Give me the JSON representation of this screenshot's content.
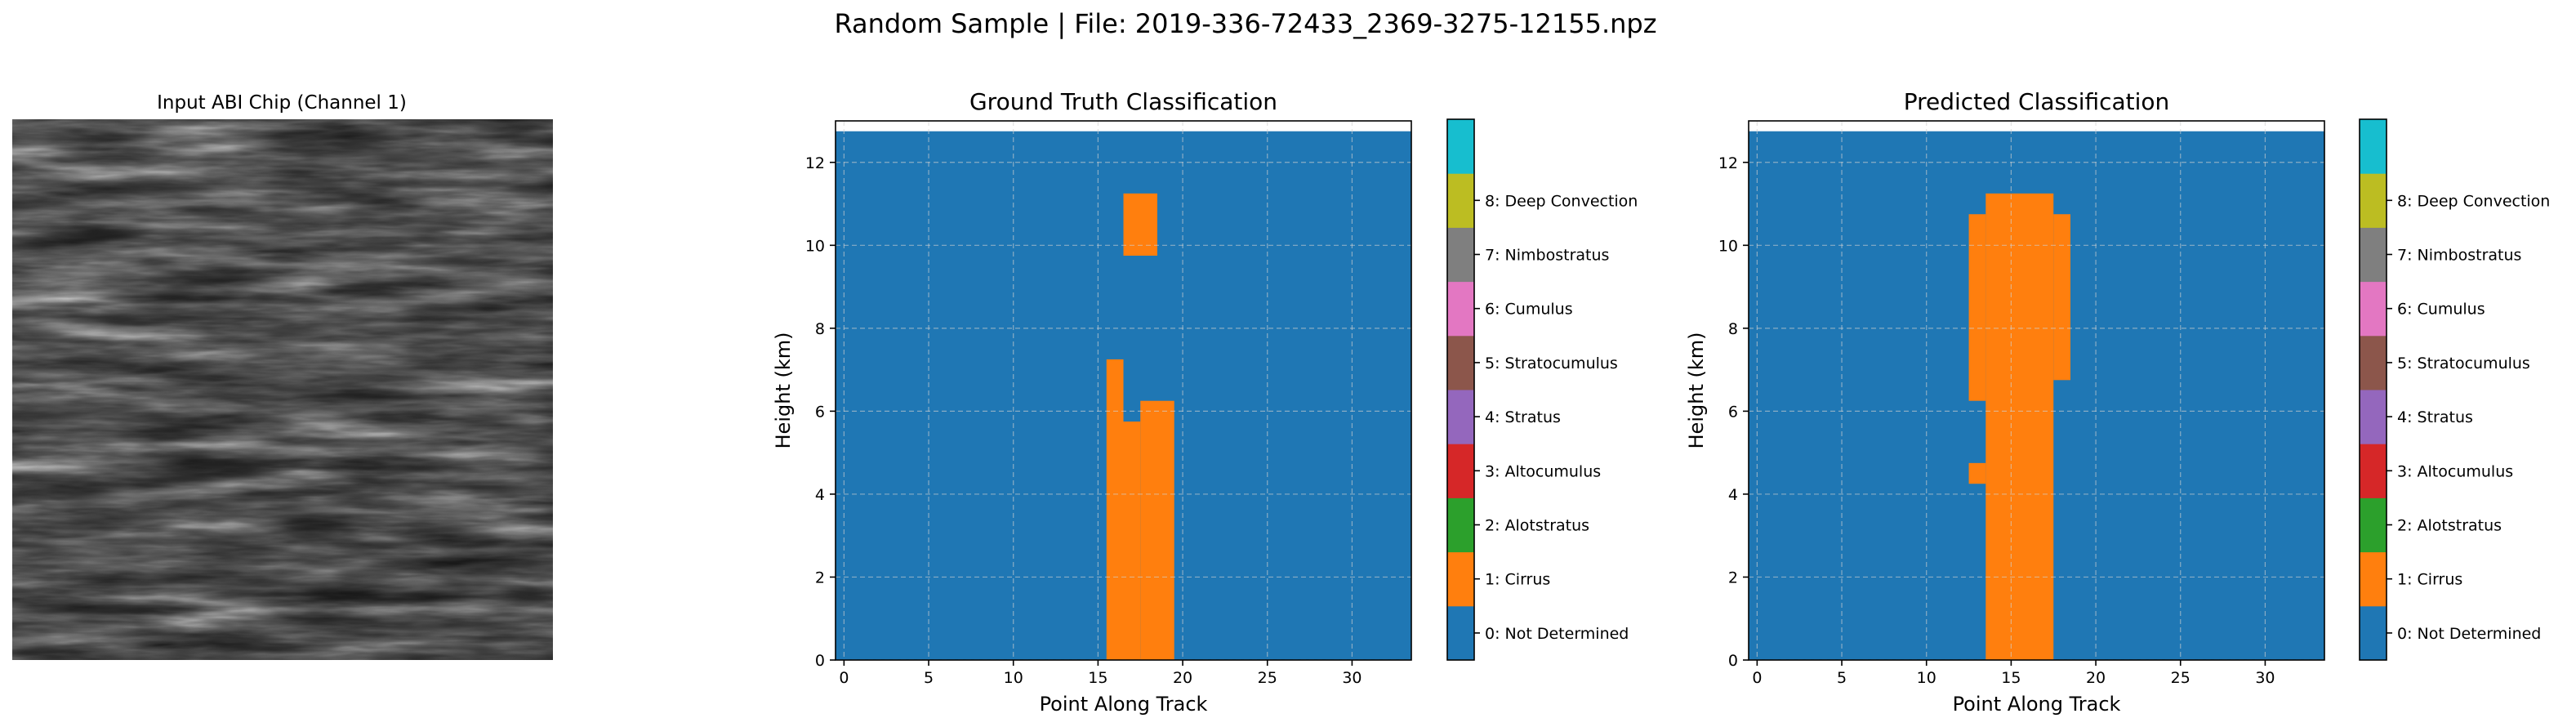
{
  "figure": {
    "suptitle": "Random Sample | File: 2019-336-72433_2369-3275-12155.npz"
  },
  "image_panel": {
    "title": "Input ABI Chip (Channel 1)"
  },
  "class_colors": [
    "#1f77b4",
    "#ff7f0e",
    "#2ca02c",
    "#d62728",
    "#9467bd",
    "#8c564b",
    "#e377c2",
    "#7f7f7f",
    "#bcbd22",
    "#17becf"
  ],
  "colorbar": {
    "labels": [
      "0: Not Determined",
      "1: Cirrus",
      "2: Alotstratus",
      "3: Altocumulus",
      "4: Stratus",
      "5: Stratocumulus",
      "6: Cumulus",
      "7: Nimbostratus",
      "8: Deep Convection"
    ]
  },
  "chart_data": [
    {
      "type": "heatmap",
      "title": "Ground Truth Classification",
      "xlabel": "Point Along Track",
      "ylabel": "Height (km)",
      "xlim": [
        -0.5,
        33.5
      ],
      "ylim": [
        0,
        13
      ],
      "xticks": [
        0,
        5,
        10,
        15,
        20,
        25,
        30
      ],
      "yticks": [
        0,
        2,
        4,
        6,
        8,
        10,
        12
      ],
      "grid": true,
      "background_class": 0,
      "data_top_km": 12.75,
      "cells": [
        {
          "x": [
            17,
            19
          ],
          "y": [
            9.75,
            11.25
          ],
          "class": 1
        },
        {
          "x": [
            16,
            17
          ],
          "y": [
            0,
            7.25
          ],
          "class": 1
        },
        {
          "x": [
            17,
            18
          ],
          "y": [
            0,
            5.75
          ],
          "class": 1
        },
        {
          "x": [
            18,
            20
          ],
          "y": [
            0,
            6.25
          ],
          "class": 1
        }
      ]
    },
    {
      "type": "heatmap",
      "title": "Predicted Classification",
      "xlabel": "Point Along Track",
      "ylabel": "Height (km)",
      "xlim": [
        -0.5,
        33.5
      ],
      "ylim": [
        0,
        13
      ],
      "xticks": [
        0,
        5,
        10,
        15,
        20,
        25,
        30
      ],
      "yticks": [
        0,
        2,
        4,
        6,
        8,
        10,
        12
      ],
      "grid": true,
      "background_class": 0,
      "data_top_km": 12.75,
      "cells": [
        {
          "x": [
            14,
            18
          ],
          "y": [
            0,
            11.25
          ],
          "class": 1
        },
        {
          "x": [
            13,
            14
          ],
          "y": [
            6.25,
            10.75
          ],
          "class": 1
        },
        {
          "x": [
            18,
            19
          ],
          "y": [
            6.75,
            10.75
          ],
          "class": 1
        },
        {
          "x": [
            13,
            14
          ],
          "y": [
            4.25,
            4.75
          ],
          "class": 1
        }
      ]
    }
  ]
}
